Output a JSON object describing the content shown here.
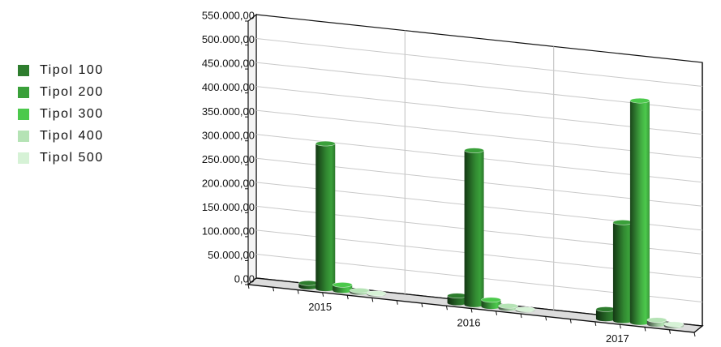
{
  "chart_data": {
    "type": "bar",
    "categories": [
      "2015",
      "2016",
      "2017"
    ],
    "series": [
      {
        "name": "Tipol 100",
        "color": "#2e7d2e",
        "values": [
          8000,
          15000,
          20000
        ]
      },
      {
        "name": "Tipol 200",
        "color": "#3aa03a",
        "values": [
          303000,
          322000,
          205000
        ]
      },
      {
        "name": "Tipol 300",
        "color": "#4cc94c",
        "values": [
          12000,
          14000,
          463000
        ]
      },
      {
        "name": "Tipol 400",
        "color": "#b5e3b5",
        "values": [
          4000,
          5000,
          9000
        ]
      },
      {
        "name": "Tipol 500",
        "color": "#d6f2d6",
        "values": [
          2000,
          2000,
          4000
        ]
      }
    ],
    "yticks": [
      "0,00",
      "50.000,00",
      "100.000,00",
      "150.000,00",
      "200.000,00",
      "250.000,00",
      "300.000,00",
      "350.000,00",
      "400.000,00",
      "450.000,00",
      "500.000,00",
      "550.000,00"
    ],
    "ylim": [
      0,
      550000
    ],
    "grid": true,
    "legend_position": "left",
    "style": "3d-cylinder"
  }
}
